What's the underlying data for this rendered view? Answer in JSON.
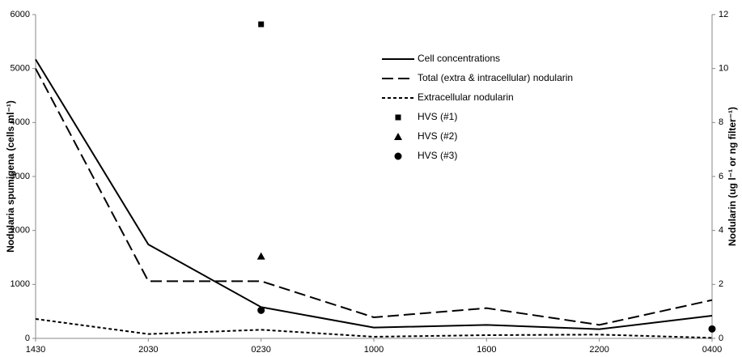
{
  "chart_data": {
    "type": "line",
    "categories": [
      "1430",
      "2030",
      "0230",
      "1000",
      "1600",
      "2200",
      "0400"
    ],
    "y_label": "Nodularia spumigena (cells ml⁻¹)",
    "y2_label": "Nodularin (ug l⁻¹ or ng filter⁻¹)",
    "ylim": [
      0,
      6000
    ],
    "yticks": [
      0,
      1000,
      2000,
      3000,
      4000,
      5000,
      6000
    ],
    "y2lim": [
      0,
      12
    ],
    "y2ticks": [
      0,
      2,
      4,
      6,
      8,
      10,
      12
    ],
    "series": [
      {
        "name": "Cell concentrations",
        "color": "#000000",
        "style": "solid",
        "values": [
          5170,
          1740,
          580,
          200,
          250,
          170,
          420
        ]
      },
      {
        "name": "Total (extra & intracellular) nodularin",
        "color": "#000000",
        "style": "dashed",
        "axis": "y2",
        "values": [
          10.0,
          2.12,
          2.12,
          0.78,
          1.12,
          0.5,
          1.42
        ]
      },
      {
        "name": "Extracellular nodularin",
        "color": "#000000",
        "style": "dotted",
        "axis": "y2",
        "values": [
          0.72,
          0.16,
          0.32,
          0.06,
          0.12,
          0.14,
          0.02
        ]
      },
      {
        "name": "HVS (#1)",
        "color": "#000000",
        "style": "markers",
        "marker": "square",
        "axis": "y2",
        "values": [
          null,
          null,
          11.64,
          null,
          null,
          null,
          null
        ]
      },
      {
        "name": "HVS (#2)",
        "color": "#000000",
        "style": "markers",
        "marker": "triangle",
        "axis": "y2",
        "values": [
          null,
          null,
          3.04,
          null,
          null,
          null,
          null
        ]
      },
      {
        "name": "HVS (#3)",
        "color": "#000000",
        "style": "markers",
        "marker": "circle",
        "axis": "y2",
        "values": [
          null,
          null,
          1.04,
          null,
          null,
          null,
          0.35
        ]
      }
    ]
  }
}
